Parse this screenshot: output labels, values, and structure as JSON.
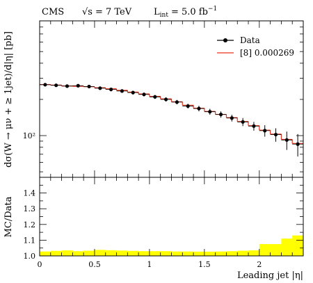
{
  "header": {
    "experiment": "CMS",
    "energy_sym": "√s",
    "energy_val": "= 7 TeV",
    "lumi_sym": "L",
    "lumi_sub": "int",
    "lumi_val": "= 5.0 fb",
    "lumi_exp": "−1"
  },
  "chart_data": [
    {
      "type": "line",
      "panel": "main",
      "ylabel": "dσ(W → μν + ≥ 1jet)/d|η| [pb]",
      "yscale": "log",
      "ylim": [
        45,
        900
      ],
      "xlim": [
        0,
        2.4
      ],
      "yticks": [
        {
          "value": 100,
          "label": "10²"
        }
      ],
      "legend": {
        "placement": "top-right",
        "entries": [
          "Data",
          "[8] 0.000269"
        ]
      },
      "bin_edges": [
        0,
        0.1,
        0.2,
        0.3,
        0.4,
        0.5,
        0.6,
        0.7,
        0.8,
        0.9,
        1.0,
        1.1,
        1.2,
        1.3,
        1.4,
        1.5,
        1.6,
        1.7,
        1.8,
        1.9,
        2.0,
        2.1,
        2.2,
        2.3,
        2.4
      ],
      "series": [
        {
          "name": "Data",
          "x": [
            0.05,
            0.15,
            0.25,
            0.35,
            0.45,
            0.55,
            0.65,
            0.75,
            0.85,
            0.95,
            1.05,
            1.15,
            1.25,
            1.35,
            1.45,
            1.55,
            1.65,
            1.75,
            1.85,
            1.95,
            2.05,
            2.15,
            2.25,
            2.35
          ],
          "values": [
            265,
            262,
            258,
            260,
            256,
            248,
            242,
            235,
            228,
            220,
            210,
            200,
            190,
            176,
            168,
            158,
            150,
            140,
            130,
            120,
            110,
            102,
            92,
            85
          ],
          "err_low": [
            8,
            8,
            8,
            8,
            8,
            8,
            8,
            8,
            8,
            8,
            8,
            8,
            8,
            8,
            9,
            9,
            9,
            9,
            10,
            10,
            12,
            13,
            16,
            18
          ],
          "err_high": [
            8,
            8,
            8,
            8,
            8,
            8,
            8,
            8,
            8,
            8,
            8,
            8,
            8,
            8,
            9,
            9,
            9,
            9,
            10,
            10,
            12,
            13,
            16,
            18
          ]
        },
        {
          "name": "[8] 0.000269",
          "values": [
            266,
            263,
            259,
            257,
            255,
            250,
            245,
            238,
            230,
            222,
            212,
            202,
            191,
            179,
            169,
            159,
            150,
            141,
            131,
            121,
            111,
            103,
            93,
            86
          ]
        }
      ]
    },
    {
      "type": "area",
      "panel": "ratio",
      "xlabel": "Leading jet |η|",
      "ylabel": "MC/Data",
      "xlim": [
        0,
        2.4
      ],
      "ylim": [
        1.0,
        1.5
      ],
      "xticks": [
        0,
        0.5,
        1,
        1.5,
        2
      ],
      "xtick_labels": [
        "0",
        "0.5",
        "1",
        "1.5",
        "2"
      ],
      "yticks": [
        1.0,
        1.1,
        1.2,
        1.3,
        1.4
      ],
      "ytick_labels": [
        "1.0",
        "1.1",
        "1.2",
        "1.3",
        "1.4"
      ],
      "band_color": "#ffff00",
      "band_low": [
        1.0,
        1.0,
        1.0,
        1.0,
        1.0,
        1.0,
        1.0,
        1.0,
        1.0,
        1.0,
        1.0,
        1.0,
        1.0,
        1.0,
        1.0,
        1.0,
        1.0,
        1.0,
        1.0,
        1.0,
        1.0,
        1.0,
        1.0,
        1.0
      ],
      "band_high": [
        1.028,
        1.032,
        1.035,
        1.03,
        1.033,
        1.038,
        1.036,
        1.034,
        1.032,
        1.03,
        1.03,
        1.03,
        1.028,
        1.028,
        1.027,
        1.027,
        1.028,
        1.03,
        1.033,
        1.035,
        1.075,
        1.075,
        1.11,
        1.13
      ]
    }
  ],
  "colors": {
    "data": "#000000",
    "mc": "#e8331c",
    "band": "#ffff00"
  }
}
